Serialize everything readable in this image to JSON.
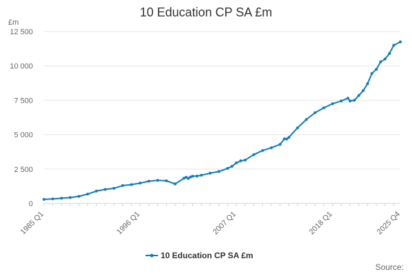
{
  "chart_data": {
    "type": "line",
    "title": "10 Education CP SA £m",
    "ylabel": "£m",
    "xlabel": "",
    "ylim": [
      0,
      12500
    ],
    "yticks": [
      0,
      2500,
      5000,
      7500,
      10000,
      12500
    ],
    "ytick_labels": [
      "0",
      "2 500",
      "5 000",
      "7 500",
      "10 000",
      "12 500"
    ],
    "xtick_labels": [
      "1985 Q1",
      "1996 Q1",
      "2007 Q1",
      "2018 Q1",
      "2025 Q4"
    ],
    "x_start": "1985 Q1",
    "x_end": "2025 Q4",
    "grid": "horizontal",
    "legend": "bottom-center",
    "color": "#0d7bbf",
    "series": [
      {
        "name": "10 Education CP SA £m",
        "x": [
          "1985 Q1",
          "1986 Q1",
          "1987 Q1",
          "1988 Q1",
          "1989 Q1",
          "1990 Q1",
          "1991 Q1",
          "1992 Q1",
          "1993 Q1",
          "1994 Q1",
          "1995 Q1",
          "1996 Q1",
          "1997 Q1",
          "1998 Q1",
          "1999 Q1",
          "2000 Q1",
          "2001 Q1",
          "2001 Q2",
          "2001 Q3",
          "2001 Q4",
          "2002 Q1",
          "2002 Q3",
          "2003 Q1",
          "2004 Q1",
          "2005 Q1",
          "2006 Q1",
          "2006 Q3",
          "2007 Q1",
          "2007 Q3",
          "2008 Q1",
          "2009 Q1",
          "2010 Q1",
          "2011 Q1",
          "2012 Q1",
          "2012 Q3",
          "2012 Q4",
          "2013 Q1",
          "2014 Q1",
          "2015 Q1",
          "2016 Q1",
          "2017 Q1",
          "2018 Q1",
          "2019 Q1",
          "2019 Q4",
          "2020 Q1",
          "2020 Q3",
          "2021 Q1",
          "2021 Q3",
          "2022 Q1",
          "2022 Q3",
          "2023 Q1",
          "2023 Q3",
          "2024 Q1",
          "2024 Q3",
          "2025 Q1",
          "2025 Q4"
        ],
        "values": [
          300,
          330,
          380,
          430,
          520,
          680,
          900,
          1020,
          1100,
          1300,
          1370,
          1480,
          1620,
          1680,
          1650,
          1420,
          1830,
          1900,
          1820,
          1920,
          1980,
          1990,
          2050,
          2200,
          2320,
          2550,
          2700,
          2950,
          3100,
          3150,
          3550,
          3850,
          4050,
          4300,
          4700,
          4680,
          4800,
          5500,
          6100,
          6600,
          6950,
          7250,
          7450,
          7650,
          7450,
          7500,
          7850,
          8200,
          8700,
          9450,
          9750,
          10300,
          10500,
          10900,
          11500,
          11750
        ]
      }
    ]
  },
  "legend": {
    "label": "10 Education CP SA £m"
  },
  "credits": {
    "text": "Source:"
  }
}
